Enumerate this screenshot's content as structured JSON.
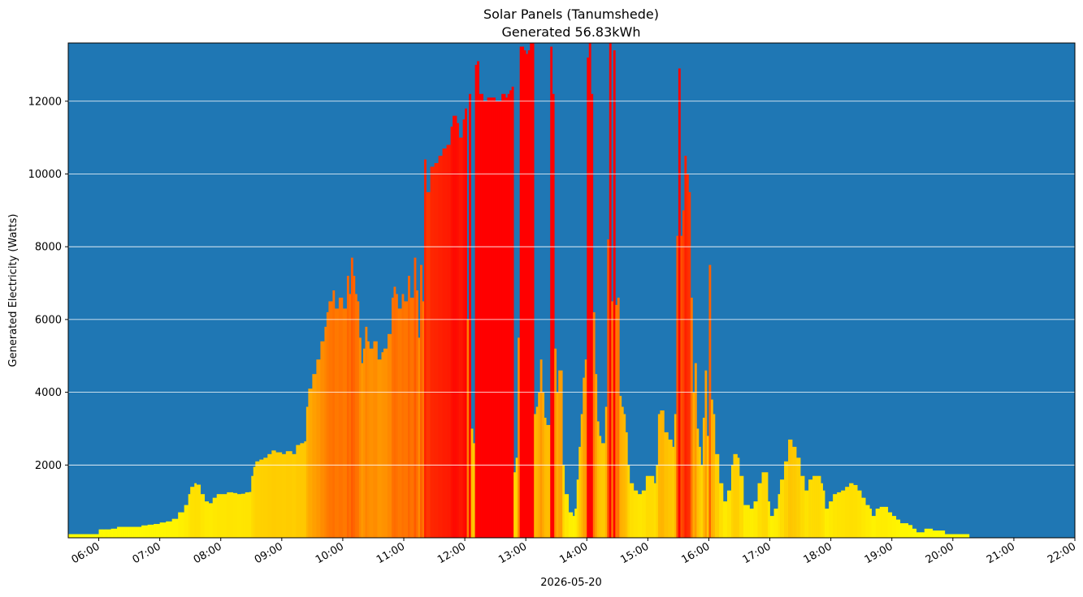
{
  "chart_data": {
    "type": "bar",
    "title": "Solar Panels (Tanumshede)",
    "subtitle": "Generated 56.83kWh",
    "xlabel": "2026-05-20",
    "ylabel": "Generated Electricity (Watts)",
    "x_range": [
      "05:30",
      "22:00"
    ],
    "ylim": [
      0,
      13600
    ],
    "y_ticks": [
      2000,
      4000,
      6000,
      8000,
      10000,
      12000
    ],
    "x_ticks": [
      "06:00",
      "07:00",
      "08:00",
      "09:00",
      "10:00",
      "11:00",
      "12:00",
      "13:00",
      "14:00",
      "15:00",
      "16:00",
      "17:00",
      "18:00",
      "19:00",
      "20:00",
      "21:00",
      "22:00"
    ],
    "grid": "horizontal",
    "background_color": "#1f77b4",
    "gridline_color": "#ffffff",
    "color_scale": [
      "#ffff00",
      "#ff0000"
    ],
    "color_scale_domain": [
      0,
      12000
    ],
    "interval_minutes": 2,
    "series": [
      {
        "values": [
          [
            330,
            100
          ],
          [
            336,
            100
          ],
          [
            342,
            100
          ],
          [
            348,
            100
          ],
          [
            354,
            100
          ],
          [
            360,
            230
          ],
          [
            366,
            230
          ],
          [
            372,
            250
          ],
          [
            378,
            300
          ],
          [
            384,
            300
          ],
          [
            390,
            300
          ],
          [
            396,
            300
          ],
          [
            402,
            340
          ],
          [
            408,
            360
          ],
          [
            414,
            380
          ],
          [
            420,
            420
          ],
          [
            426,
            450
          ],
          [
            432,
            520
          ],
          [
            438,
            700
          ],
          [
            444,
            900
          ],
          [
            448,
            1200
          ],
          [
            450,
            1400
          ],
          [
            454,
            1500
          ],
          [
            456,
            1460
          ],
          [
            460,
            1200
          ],
          [
            464,
            1000
          ],
          [
            468,
            950
          ],
          [
            472,
            1100
          ],
          [
            476,
            1200
          ],
          [
            480,
            1200
          ],
          [
            486,
            1250
          ],
          [
            492,
            1230
          ],
          [
            496,
            1200
          ],
          [
            500,
            1210
          ],
          [
            504,
            1250
          ],
          [
            508,
            1260
          ],
          [
            510,
            1700
          ],
          [
            512,
            1950
          ],
          [
            514,
            2100
          ],
          [
            518,
            2150
          ],
          [
            522,
            2200
          ],
          [
            526,
            2300
          ],
          [
            530,
            2400
          ],
          [
            534,
            2350
          ],
          [
            540,
            2300
          ],
          [
            544,
            2380
          ],
          [
            550,
            2300
          ],
          [
            554,
            2550
          ],
          [
            558,
            2600
          ],
          [
            562,
            2650
          ],
          [
            563,
            3600
          ],
          [
            566,
            4100
          ],
          [
            570,
            4500
          ],
          [
            574,
            4900
          ],
          [
            578,
            5400
          ],
          [
            582,
            5800
          ],
          [
            584,
            6200
          ],
          [
            586,
            6500
          ],
          [
            590,
            6800
          ],
          [
            592,
            6300
          ],
          [
            596,
            6600
          ],
          [
            600,
            6300
          ],
          [
            604,
            7200
          ],
          [
            606,
            6700
          ],
          [
            608,
            7700
          ],
          [
            610,
            7200
          ],
          [
            612,
            6700
          ],
          [
            614,
            6500
          ],
          [
            616,
            5500
          ],
          [
            618,
            4800
          ],
          [
            620,
            5200
          ],
          [
            622,
            5800
          ],
          [
            624,
            5400
          ],
          [
            626,
            5200
          ],
          [
            630,
            5400
          ],
          [
            634,
            4900
          ],
          [
            638,
            5100
          ],
          [
            640,
            5200
          ],
          [
            644,
            5600
          ],
          [
            648,
            6600
          ],
          [
            650,
            6900
          ],
          [
            652,
            6700
          ],
          [
            654,
            6300
          ],
          [
            658,
            6700
          ],
          [
            660,
            6500
          ],
          [
            664,
            7200
          ],
          [
            666,
            6600
          ],
          [
            670,
            7700
          ],
          [
            672,
            6800
          ],
          [
            674,
            5500
          ],
          [
            676,
            7500
          ],
          [
            678,
            6500
          ],
          [
            680,
            10400
          ],
          [
            682,
            9500
          ],
          [
            686,
            10200
          ],
          [
            690,
            10300
          ],
          [
            694,
            10500
          ],
          [
            698,
            10700
          ],
          [
            702,
            10800
          ],
          [
            706,
            11300
          ],
          [
            708,
            11600
          ],
          [
            712,
            11400
          ],
          [
            714,
            11000
          ],
          [
            718,
            11500
          ],
          [
            720,
            11800
          ],
          [
            722,
            6000
          ],
          [
            724,
            12200
          ],
          [
            726,
            3000
          ],
          [
            728,
            2600
          ],
          [
            730,
            13000
          ],
          [
            732,
            13100
          ],
          [
            734,
            12200
          ],
          [
            738,
            12000
          ],
          [
            742,
            12100
          ],
          [
            746,
            12100
          ],
          [
            750,
            12000
          ],
          [
            752,
            12000
          ],
          [
            756,
            12200
          ],
          [
            760,
            12100
          ],
          [
            762,
            12200
          ],
          [
            764,
            12300
          ],
          [
            766,
            12400
          ],
          [
            768,
            1800
          ],
          [
            770,
            2200
          ],
          [
            772,
            5500
          ],
          [
            774,
            13500
          ],
          [
            778,
            13400
          ],
          [
            780,
            13300
          ],
          [
            782,
            13400
          ],
          [
            784,
            13600
          ],
          [
            786,
            13600
          ],
          [
            788,
            3400
          ],
          [
            790,
            3600
          ],
          [
            792,
            4000
          ],
          [
            794,
            4900
          ],
          [
            796,
            4000
          ],
          [
            798,
            3300
          ],
          [
            800,
            3100
          ],
          [
            804,
            13500
          ],
          [
            806,
            12200
          ],
          [
            808,
            5200
          ],
          [
            810,
            4000
          ],
          [
            812,
            4600
          ],
          [
            814,
            4600
          ],
          [
            816,
            2000
          ],
          [
            818,
            1200
          ],
          [
            822,
            700
          ],
          [
            826,
            600
          ],
          [
            828,
            800
          ],
          [
            830,
            1600
          ],
          [
            832,
            2500
          ],
          [
            834,
            3400
          ],
          [
            836,
            4400
          ],
          [
            838,
            4900
          ],
          [
            840,
            13200
          ],
          [
            842,
            13600
          ],
          [
            844,
            12200
          ],
          [
            846,
            6200
          ],
          [
            848,
            4500
          ],
          [
            850,
            3200
          ],
          [
            852,
            2800
          ],
          [
            854,
            2600
          ],
          [
            856,
            2600
          ],
          [
            858,
            3600
          ],
          [
            860,
            8200
          ],
          [
            862,
            13600
          ],
          [
            864,
            6500
          ],
          [
            866,
            13400
          ],
          [
            868,
            6400
          ],
          [
            870,
            6600
          ],
          [
            872,
            3900
          ],
          [
            874,
            3600
          ],
          [
            876,
            3400
          ],
          [
            878,
            2900
          ],
          [
            880,
            2000
          ],
          [
            882,
            1500
          ],
          [
            886,
            1300
          ],
          [
            890,
            1200
          ],
          [
            894,
            1300
          ],
          [
            898,
            1700
          ],
          [
            902,
            1700
          ],
          [
            906,
            1500
          ],
          [
            908,
            2000
          ],
          [
            910,
            3400
          ],
          [
            912,
            3500
          ],
          [
            916,
            2900
          ],
          [
            920,
            2700
          ],
          [
            922,
            2700
          ],
          [
            924,
            2500
          ],
          [
            926,
            3400
          ],
          [
            928,
            8300
          ],
          [
            930,
            12900
          ],
          [
            932,
            8300
          ],
          [
            934,
            9000
          ],
          [
            936,
            10500
          ],
          [
            938,
            10000
          ],
          [
            940,
            9500
          ],
          [
            942,
            6600
          ],
          [
            944,
            4000
          ],
          [
            946,
            4800
          ],
          [
            948,
            3000
          ],
          [
            950,
            2500
          ],
          [
            952,
            2000
          ],
          [
            954,
            3300
          ],
          [
            956,
            4600
          ],
          [
            958,
            2800
          ],
          [
            960,
            7500
          ],
          [
            962,
            3800
          ],
          [
            964,
            3400
          ],
          [
            966,
            2300
          ],
          [
            970,
            1500
          ],
          [
            974,
            1000
          ],
          [
            978,
            1300
          ],
          [
            982,
            2000
          ],
          [
            984,
            2300
          ],
          [
            988,
            2200
          ],
          [
            990,
            1700
          ],
          [
            994,
            900
          ],
          [
            998,
            900
          ],
          [
            1000,
            800
          ],
          [
            1004,
            1000
          ],
          [
            1008,
            1500
          ],
          [
            1012,
            1800
          ],
          [
            1014,
            1800
          ],
          [
            1018,
            1000
          ],
          [
            1020,
            600
          ],
          [
            1024,
            800
          ],
          [
            1028,
            1200
          ],
          [
            1030,
            1600
          ],
          [
            1034,
            2100
          ],
          [
            1038,
            2700
          ],
          [
            1042,
            2500
          ],
          [
            1046,
            2200
          ],
          [
            1050,
            1700
          ],
          [
            1054,
            1300
          ],
          [
            1058,
            1600
          ],
          [
            1062,
            1700
          ],
          [
            1066,
            1700
          ],
          [
            1070,
            1500
          ],
          [
            1072,
            1300
          ],
          [
            1074,
            800
          ],
          [
            1078,
            1000
          ],
          [
            1082,
            1200
          ],
          [
            1086,
            1250
          ],
          [
            1090,
            1300
          ],
          [
            1094,
            1400
          ],
          [
            1098,
            1500
          ],
          [
            1102,
            1450
          ],
          [
            1106,
            1300
          ],
          [
            1110,
            1100
          ],
          [
            1114,
            900
          ],
          [
            1118,
            800
          ],
          [
            1120,
            600
          ],
          [
            1124,
            800
          ],
          [
            1128,
            850
          ],
          [
            1132,
            850
          ],
          [
            1136,
            700
          ],
          [
            1140,
            600
          ],
          [
            1144,
            500
          ],
          [
            1148,
            400
          ],
          [
            1152,
            400
          ],
          [
            1156,
            350
          ],
          [
            1160,
            250
          ],
          [
            1164,
            150
          ],
          [
            1168,
            150
          ],
          [
            1172,
            250
          ],
          [
            1176,
            250
          ],
          [
            1180,
            200
          ],
          [
            1184,
            200
          ],
          [
            1188,
            200
          ],
          [
            1192,
            100
          ],
          [
            1198,
            100
          ],
          [
            1204,
            100
          ],
          [
            1210,
            100
          ],
          [
            1216,
            100
          ]
        ]
      }
    ]
  }
}
